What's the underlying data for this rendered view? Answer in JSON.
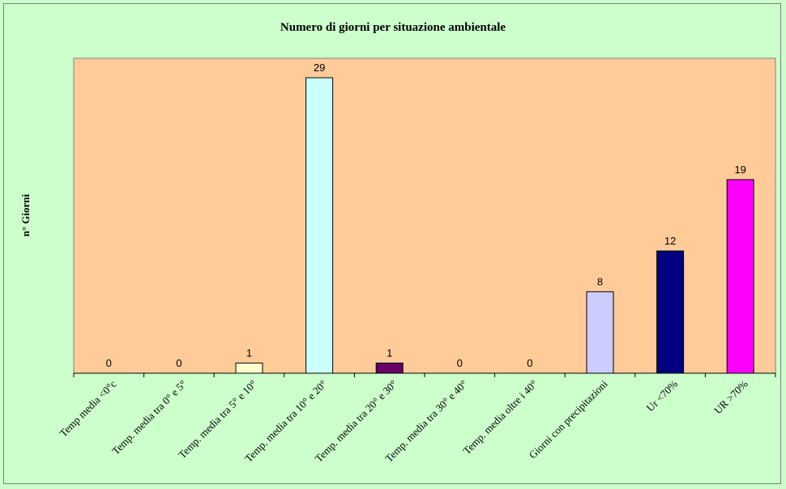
{
  "chart_data": {
    "type": "bar",
    "title": "Numero di giorni per situazione ambientale",
    "xlabel": "",
    "ylabel": "n° Giorni",
    "ylim": [
      0,
      30
    ],
    "grid": false,
    "legend": "none",
    "plot_background": "#ffcc99",
    "page_background": "#ccffcc",
    "categories": [
      "Temp media <0°c",
      "Temp. media tra 0° e 5°",
      "Temp. media tra 5° e 10°",
      "Temp. media tra 10° e 20°",
      "Temp. media tra 20° e 30°",
      "Temp. media tra 30° e 40°",
      "Temp. media oltre i 40°",
      "Giorni con precipitazioni",
      "Ur  <70%",
      "UR >70%"
    ],
    "values": [
      0,
      0,
      1,
      29,
      1,
      0,
      0,
      8,
      12,
      19
    ],
    "colors": [
      "#ffffcc",
      "#ffffcc",
      "#ffffcc",
      "#ccffff",
      "#660066",
      "#ff8080",
      "#0066cc",
      "#ccccff",
      "#000080",
      "#ff00ff"
    ]
  }
}
